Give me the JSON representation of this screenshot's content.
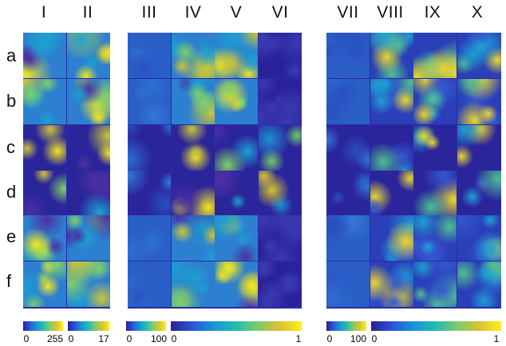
{
  "column_labels": [
    "I",
    "II",
    "III",
    "IV",
    "V",
    "VI",
    "VII",
    "VIII",
    "IX",
    "X"
  ],
  "row_labels": [
    "a",
    "b",
    "c",
    "d",
    "e",
    "f"
  ],
  "colorbars": [
    {
      "min_label": "0",
      "max_label": "255"
    },
    {
      "min_label": "0",
      "max_label": "17"
    },
    {
      "min_label": "0",
      "max_label": "100"
    },
    {
      "min_label": "0",
      "max_label": "1"
    },
    {
      "min_label": "0",
      "max_label": "100"
    },
    {
      "min_label": "0",
      "max_label": "1"
    }
  ],
  "colors": {
    "colormap": [
      "#2b1f8f",
      "#2a56d8",
      "#1a95d6",
      "#22bdb3",
      "#7fcb6a",
      "#dcc230",
      "#f9f21c"
    ]
  }
}
